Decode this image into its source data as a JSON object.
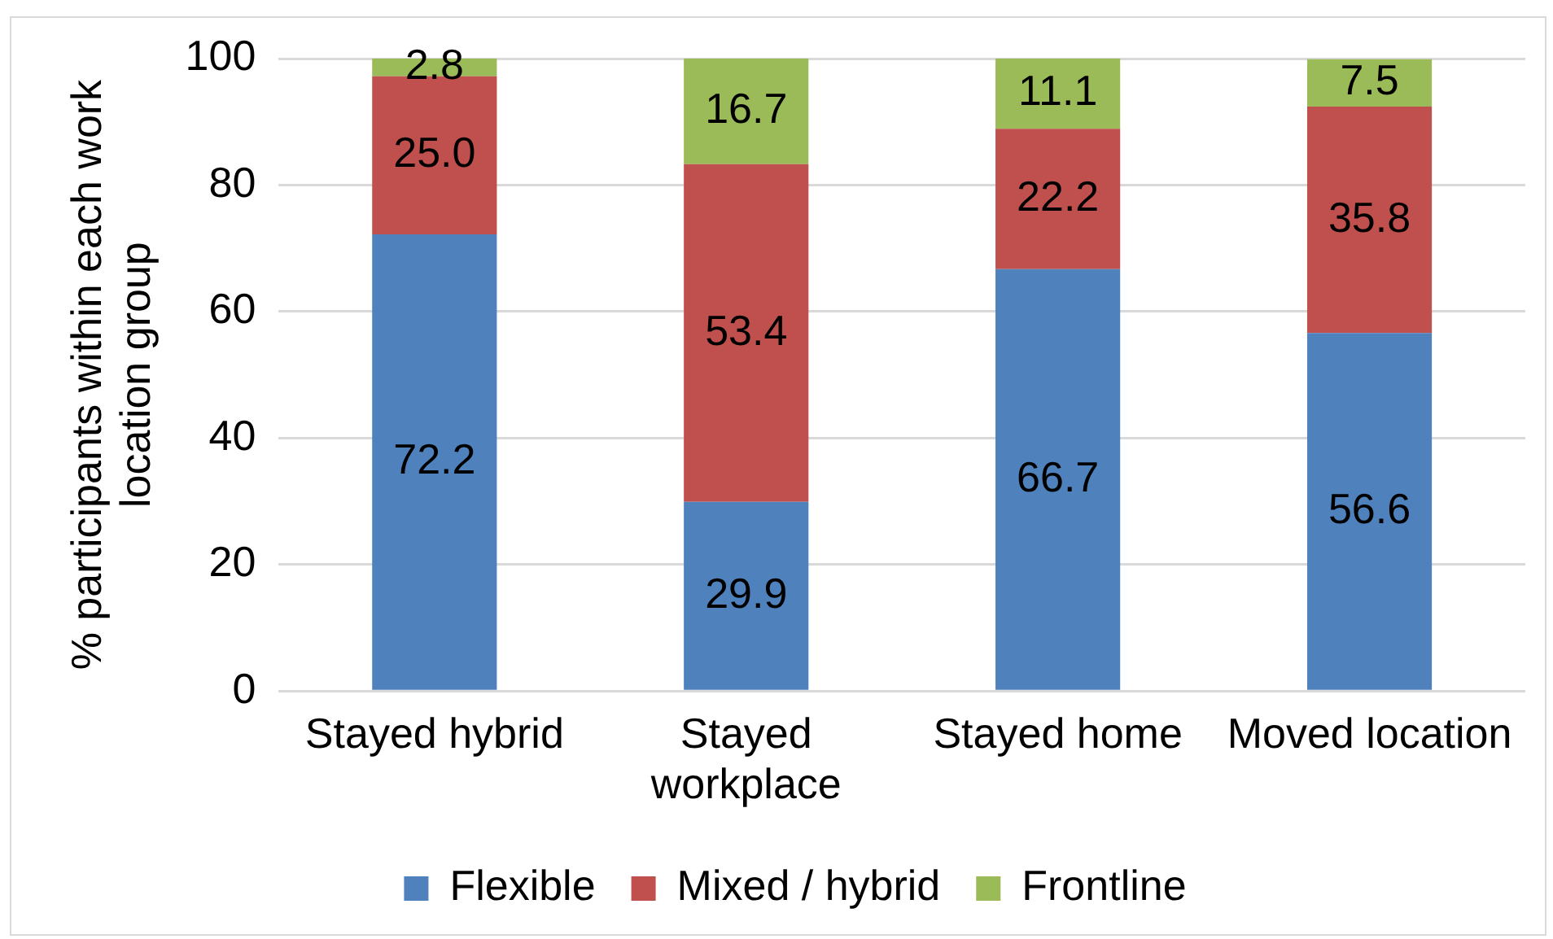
{
  "chart_data": {
    "type": "bar",
    "stacked": true,
    "ylabel": "% participants within each work location group",
    "categories": [
      "Stayed hybrid",
      "Stayed workplace",
      "Stayed home",
      "Moved location"
    ],
    "series": [
      {
        "name": "Flexible",
        "color": "#4f81bd",
        "values": [
          72.2,
          29.9,
          66.7,
          56.6
        ],
        "value_labels": [
          "72.2",
          "29.9",
          "66.7",
          "56.6"
        ]
      },
      {
        "name": "Mixed / hybrid",
        "color": "#c0504d",
        "values": [
          25.0,
          53.4,
          22.2,
          35.8
        ],
        "value_labels": [
          "25.0",
          "53.4",
          "22.2",
          "35.8"
        ]
      },
      {
        "name": "Frontline",
        "color": "#9bbb59",
        "values": [
          2.8,
          16.7,
          11.1,
          7.5
        ],
        "value_labels": [
          "2.8",
          "16.7",
          "11.1",
          "7.5"
        ]
      }
    ],
    "ylim": [
      0,
      100
    ],
    "yticks": [
      0,
      20,
      40,
      60,
      80,
      100
    ],
    "grid": "y",
    "legend": "bottom"
  }
}
